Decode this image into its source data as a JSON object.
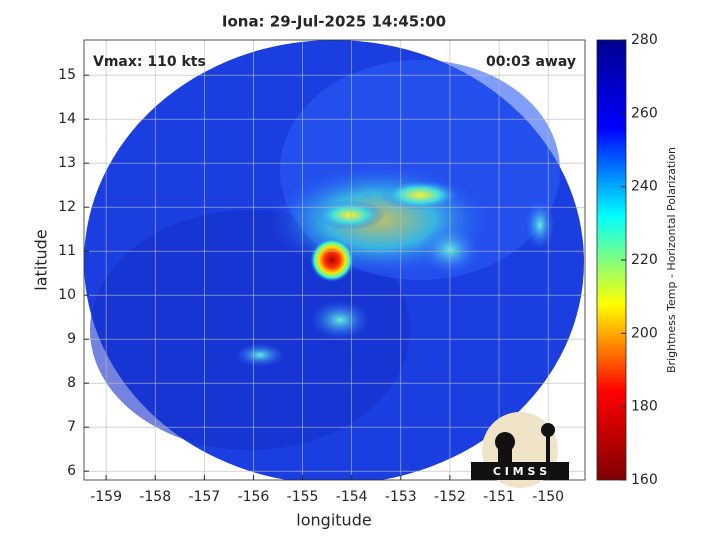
{
  "chart_data": {
    "type": "image",
    "title": "Iona: 29-Jul-2025 14:45:00",
    "annotations": [
      "Vmax: 110 kts",
      "00:03 away"
    ],
    "xlabel": "longitude",
    "ylabel": "latitude",
    "xlim": [
      -159.45,
      -149.25
    ],
    "xticks": [
      -159,
      -158,
      -157,
      -156,
      -155,
      -154,
      -153,
      -152,
      -151,
      -150
    ],
    "ylim": [
      5.8,
      15.8
    ],
    "yticks": [
      6,
      7,
      8,
      9,
      10,
      11,
      12,
      13,
      14,
      15
    ],
    "grid": true,
    "colorbar": {
      "label": "Brightness Temp - Horizontal Polarization",
      "colormap": "jet",
      "clim": [
        160,
        280
      ],
      "ticks": [
        160,
        180,
        200,
        220,
        240,
        260,
        280
      ]
    },
    "logo": "C I M S S"
  }
}
